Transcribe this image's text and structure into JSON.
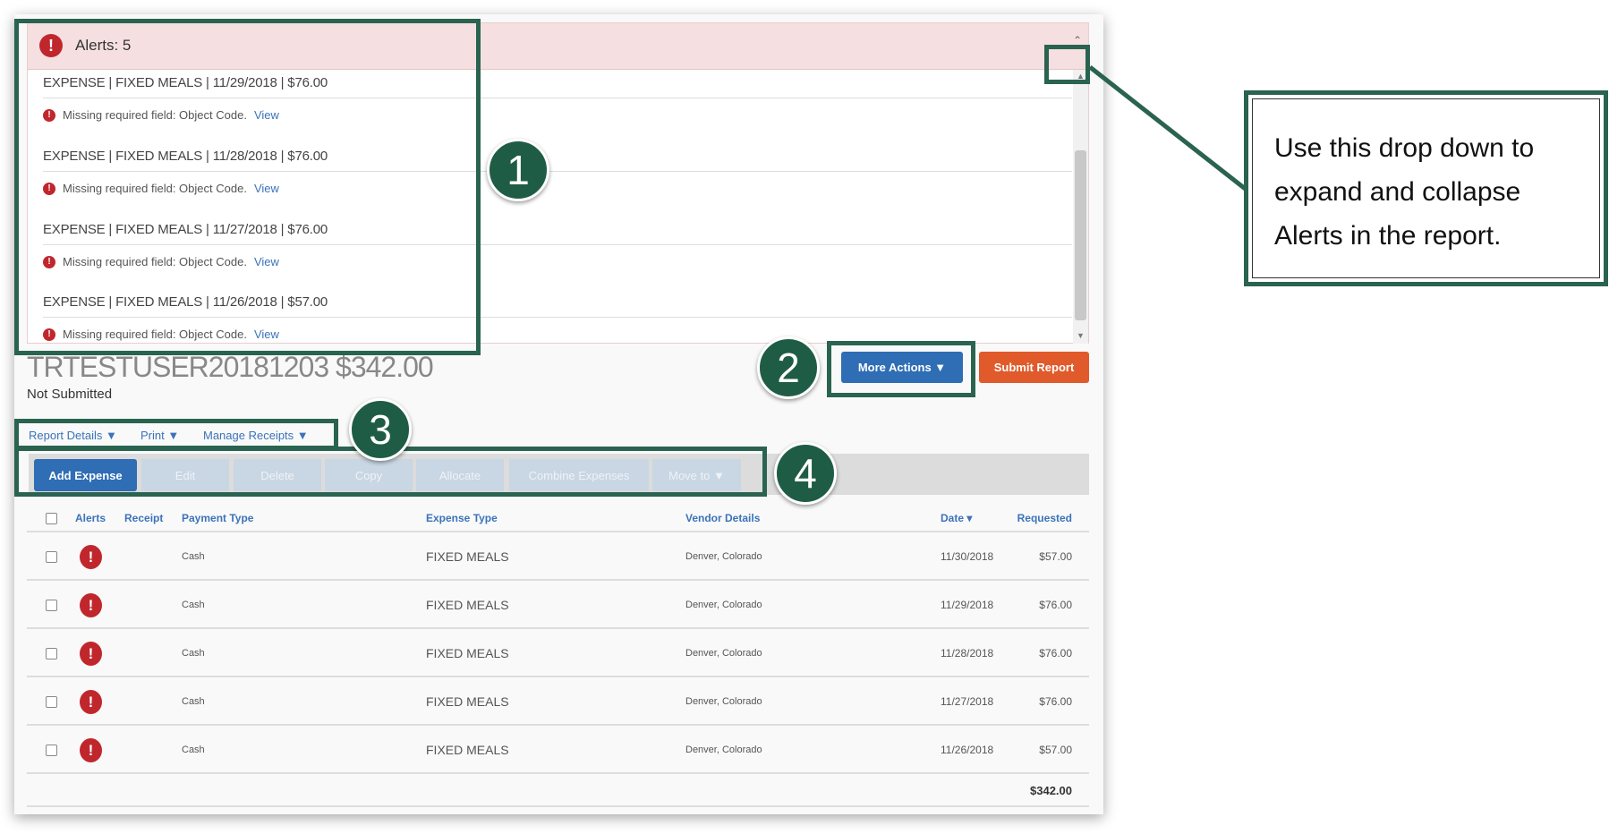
{
  "alerts": {
    "title": "Alerts: 5",
    "items": [
      {
        "line": "EXPENSE | FIXED MEALS | 11/29/2018 | $76.00",
        "message": "Missing required field: Object Code.",
        "link": "View"
      },
      {
        "line": "EXPENSE | FIXED MEALS | 11/28/2018 | $76.00",
        "message": "Missing required field: Object Code.",
        "link": "View"
      },
      {
        "line": "EXPENSE | FIXED MEALS | 11/27/2018 | $76.00",
        "message": "Missing required field: Object Code.",
        "link": "View"
      },
      {
        "line": "EXPENSE | FIXED MEALS | 11/26/2018 | $57.00",
        "message": "Missing required field: Object Code.",
        "link": "View"
      }
    ]
  },
  "report": {
    "title": "TRTESTUSER20181203 $342.00",
    "status": "Not Submitted"
  },
  "actions": {
    "more": "More Actions ▼",
    "submit": "Submit Report"
  },
  "menus": [
    "Report Details ▼",
    "Print ▼",
    "Manage Receipts ▼"
  ],
  "toolbar": [
    "Add Expense",
    "Edit",
    "Delete",
    "Copy",
    "Allocate",
    "Combine Expenses",
    "Move to ▼"
  ],
  "table": {
    "headers": [
      "Alerts",
      "Receipt",
      "Payment Type",
      "Expense Type",
      "Vendor Details",
      "Date ▾",
      "Requested"
    ],
    "rows": [
      [
        "Cash",
        "FIXED MEALS",
        "Denver, Colorado",
        "11/30/2018",
        "$57.00"
      ],
      [
        "Cash",
        "FIXED MEALS",
        "Denver, Colorado",
        "11/29/2018",
        "$76.00"
      ],
      [
        "Cash",
        "FIXED MEALS",
        "Denver, Colorado",
        "11/28/2018",
        "$76.00"
      ],
      [
        "Cash",
        "FIXED MEALS",
        "Denver, Colorado",
        "11/27/2018",
        "$76.00"
      ],
      [
        "Cash",
        "FIXED MEALS",
        "Denver, Colorado",
        "11/26/2018",
        "$57.00"
      ]
    ],
    "total": "$342.00"
  },
  "annotations": {
    "n1": "1",
    "n2": "2",
    "n3": "3",
    "n4": "4",
    "callout": "Use this drop down to expand and collapse Alerts in the report."
  },
  "colors": {
    "annotation": "#2a6350",
    "primary": "#2f6db5",
    "submit": "#e05a2b",
    "alert": "#c0272d"
  }
}
